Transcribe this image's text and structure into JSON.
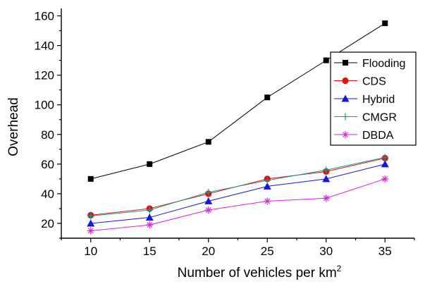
{
  "chart_data": {
    "type": "line",
    "x": [
      10,
      15,
      20,
      25,
      30,
      35
    ],
    "xlabel": "Number of vehicles per km",
    "xlabel_superscript": "2",
    "ylabel": "Overhead",
    "xlim": [
      7.5,
      37.5
    ],
    "ylim": [
      10,
      165
    ],
    "xticks": [
      10,
      15,
      20,
      25,
      30,
      35
    ],
    "yticks": [
      20,
      40,
      60,
      80,
      100,
      120,
      140,
      160
    ],
    "grid": false,
    "legend_position": "right",
    "series": [
      {
        "name": "Flooding",
        "values": [
          50,
          60,
          75,
          105,
          130,
          155
        ],
        "color": "#000000",
        "marker": "square"
      },
      {
        "name": "CDS",
        "values": [
          25.5,
          30,
          40,
          50,
          55,
          64
        ],
        "color": "#e01010",
        "marker": "circle"
      },
      {
        "name": "Hybrid",
        "values": [
          20,
          24,
          35,
          45,
          50,
          60
        ],
        "color": "#1515e0",
        "marker": "triangle"
      },
      {
        "name": "CMGR",
        "values": [
          25,
          29,
          41,
          49,
          56,
          64.5
        ],
        "color": "#1a9a88",
        "marker": "plus"
      },
      {
        "name": "DBDA",
        "values": [
          15,
          19,
          29,
          35,
          37,
          50
        ],
        "color": "#e020e0",
        "marker": "asterisk"
      }
    ]
  }
}
